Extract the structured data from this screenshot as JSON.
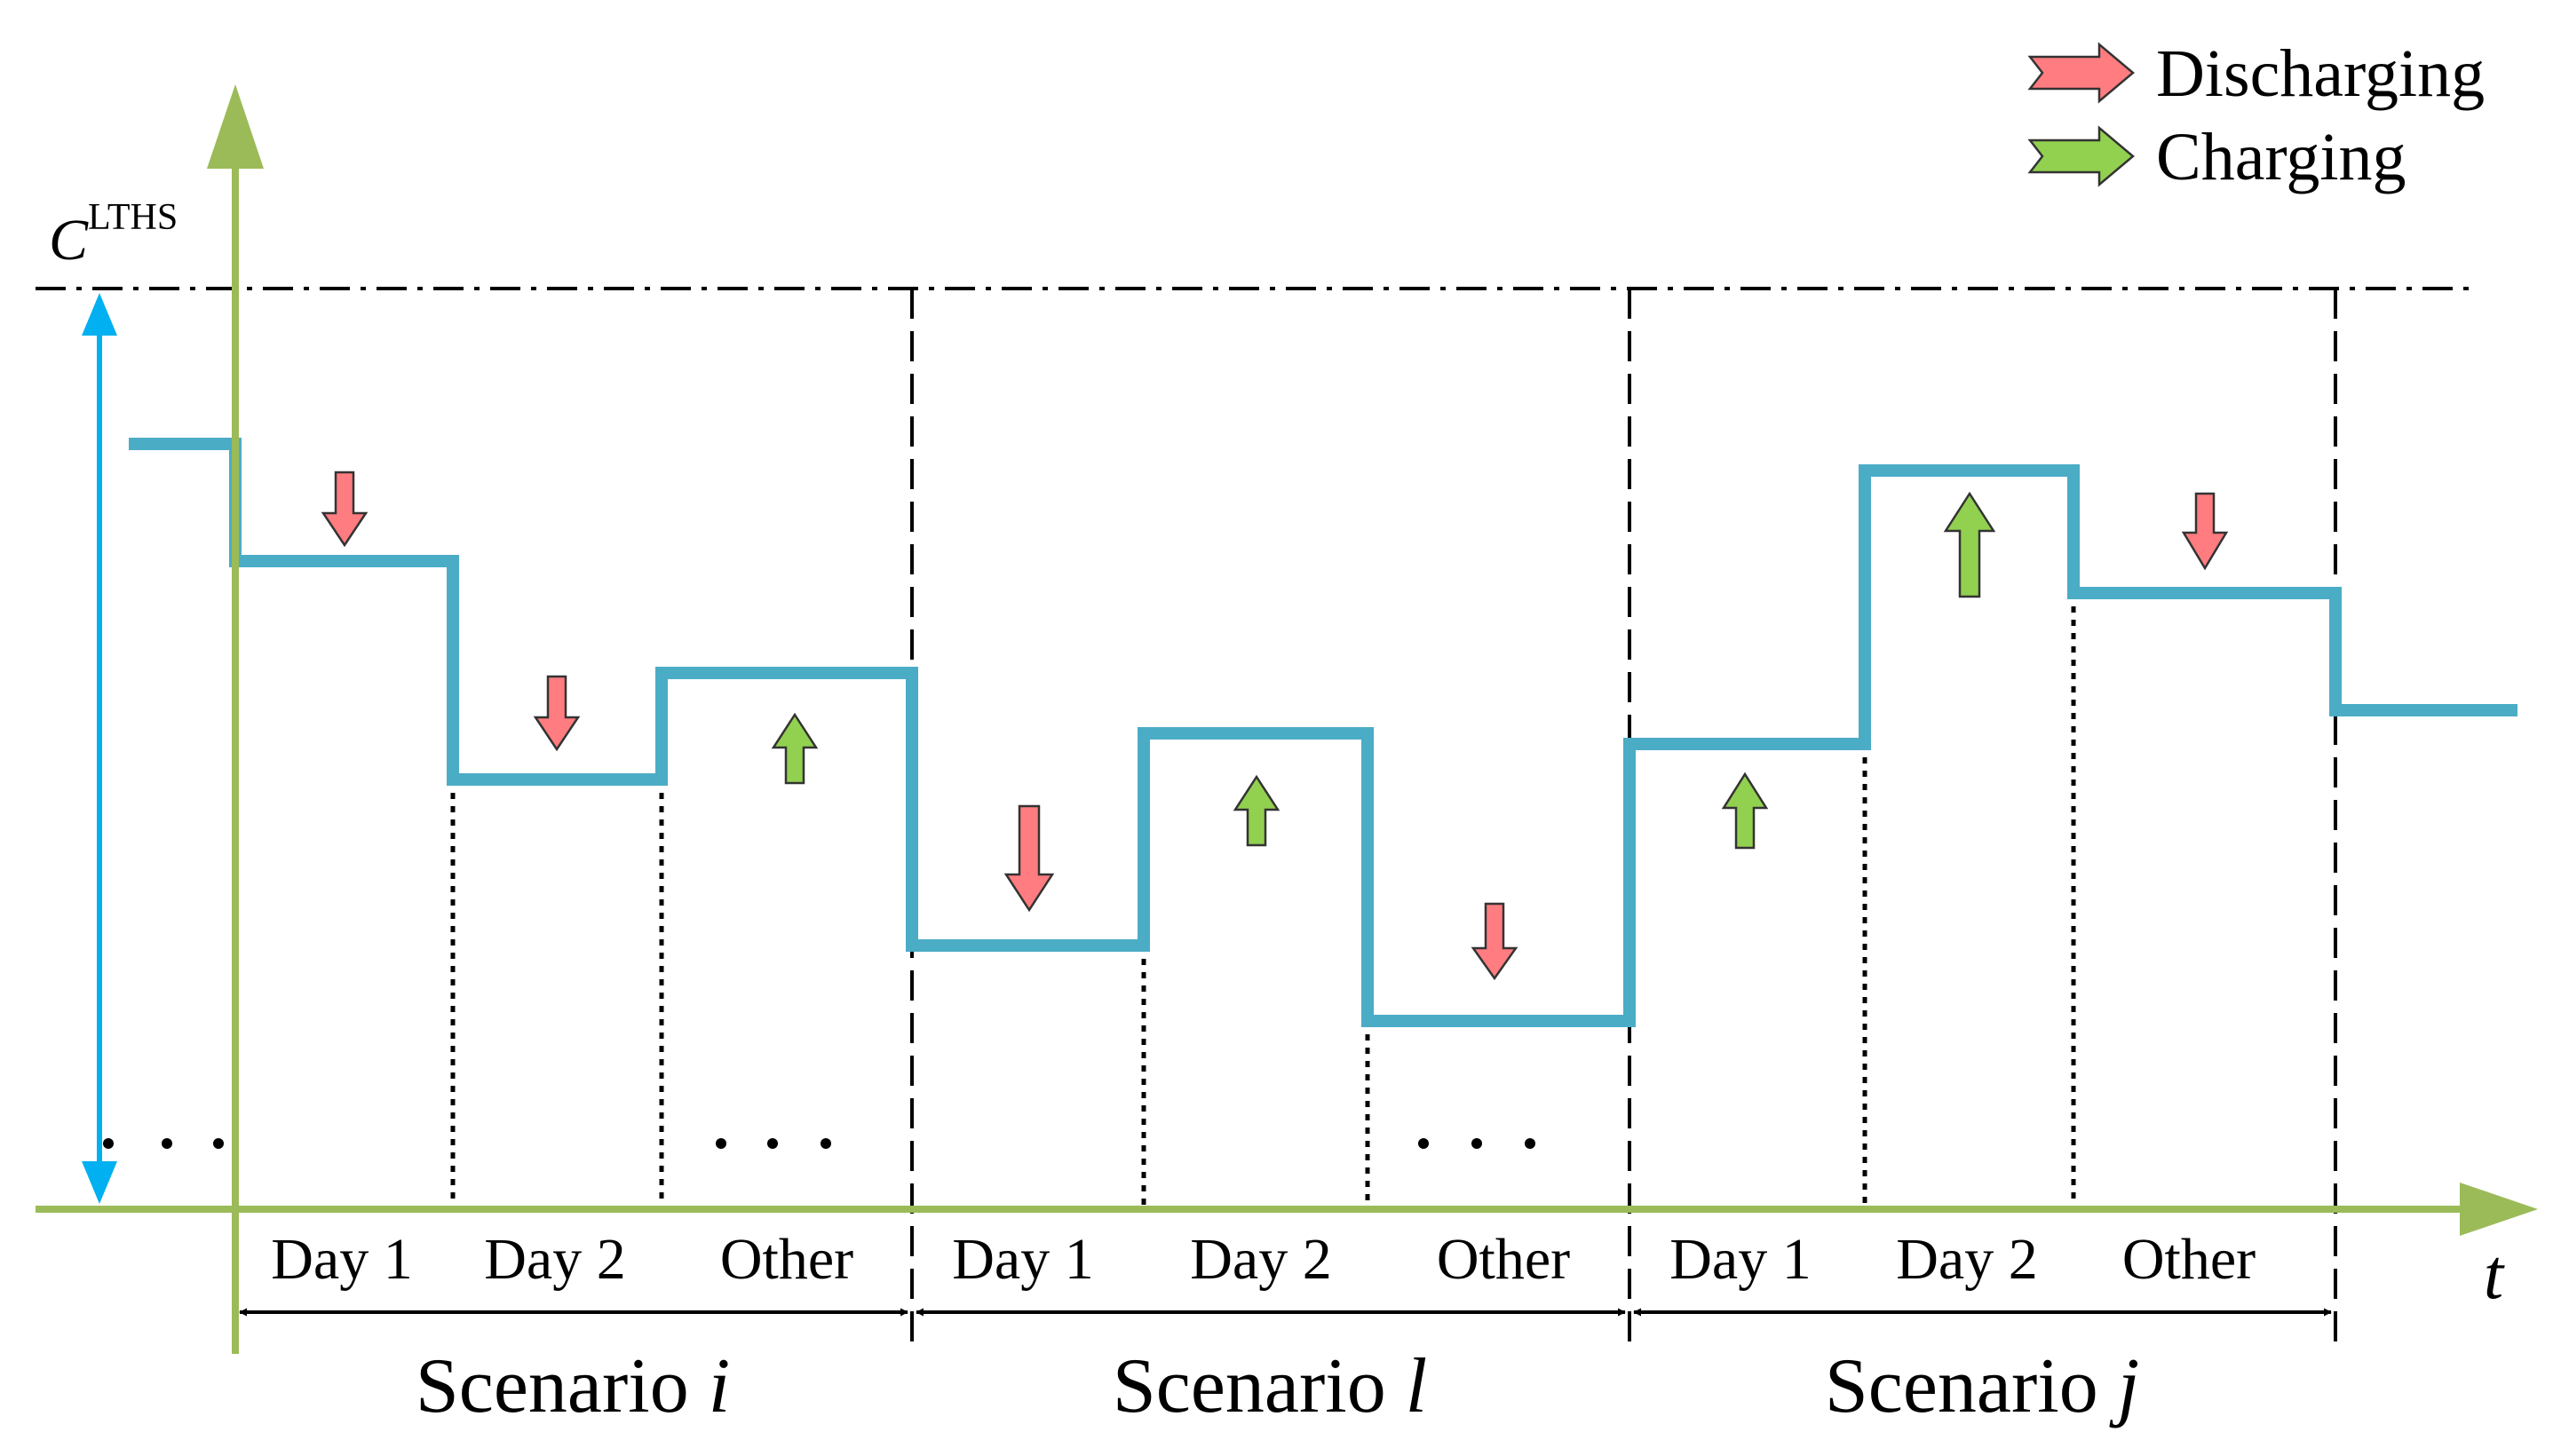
{
  "legend": {
    "discharging_label": "Discharging",
    "charging_label": "Charging"
  },
  "axis": {
    "capacity_symbol": "C",
    "capacity_superscript": "LTHS",
    "time_label": "t"
  },
  "periods": [
    {
      "label": "Day 1",
      "flow": "discharging"
    },
    {
      "label": "Day 2",
      "flow": "discharging"
    },
    {
      "label": "Other",
      "flow": "charging"
    },
    {
      "label": "Day 1",
      "flow": "discharging"
    },
    {
      "label": "Day 2",
      "flow": "charging"
    },
    {
      "label": "Other",
      "flow": "discharging"
    },
    {
      "label": "Day 1",
      "flow": "charging"
    },
    {
      "label": "Day 2",
      "flow": "charging"
    },
    {
      "label": "Other",
      "flow": "discharging"
    }
  ],
  "scenarios": [
    {
      "prefix": "Scenario ",
      "name": "i"
    },
    {
      "prefix": "Scenario ",
      "name": "l"
    },
    {
      "prefix": "Scenario ",
      "name": "j"
    }
  ],
  "ellipsis": "...",
  "colors": {
    "axis": "#9bbb59",
    "storage_line": "#4bacc6",
    "capacity_arrow": "#00b0f0",
    "discharging": "#ff7c80",
    "charging": "#92d050",
    "line": "#000000"
  }
}
